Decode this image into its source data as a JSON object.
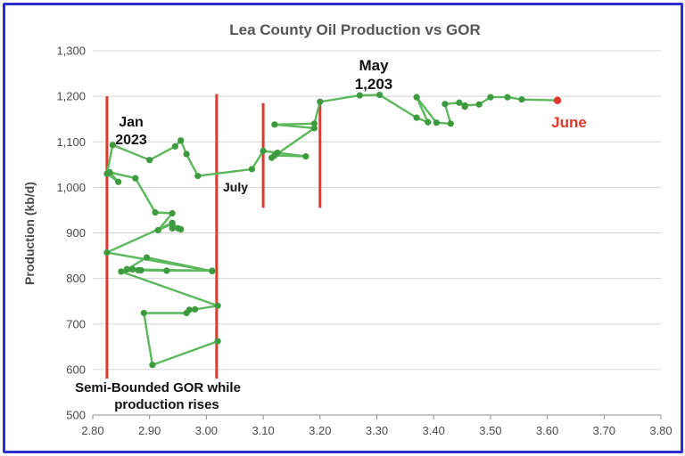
{
  "chart_data": {
    "type": "line",
    "title": "Lea County Oil Production vs GOR",
    "xlabel": "",
    "ylabel": "Production (kb/d)",
    "xlim": [
      2.8,
      3.8
    ],
    "ylim": [
      500,
      1300
    ],
    "x_ticks": [
      "2.80",
      "2.90",
      "3.00",
      "3.10",
      "3.20",
      "3.30",
      "3.40",
      "3.50",
      "3.60",
      "3.70",
      "3.80"
    ],
    "y_ticks": [
      "500",
      "600",
      "700",
      "800",
      "900",
      "1,000",
      "1,100",
      "1,200",
      "1,300"
    ],
    "grid": "horizontal",
    "series": [
      {
        "color": "#5cb85c",
        "marker_color": "#3e9a3e",
        "points": [
          [
            3.02,
            662
          ],
          [
            2.905,
            610
          ],
          [
            2.89,
            724
          ],
          [
            2.965,
            724
          ],
          [
            2.97,
            731
          ],
          [
            2.98,
            732
          ],
          [
            3.02,
            740
          ],
          [
            2.85,
            815
          ],
          [
            2.88,
            818
          ],
          [
            2.87,
            820
          ],
          [
            2.86,
            820
          ],
          [
            3.01,
            817
          ],
          [
            2.93,
            817
          ],
          [
            2.885,
            818
          ],
          [
            2.86,
            820
          ],
          [
            2.895,
            846
          ],
          [
            3.01,
            816
          ],
          [
            2.825,
            857
          ],
          [
            2.94,
            922
          ],
          [
            2.95,
            910
          ],
          [
            2.94,
            910
          ],
          [
            2.955,
            908
          ],
          [
            2.94,
            920
          ],
          [
            2.915,
            906
          ],
          [
            2.94,
            943
          ],
          [
            2.91,
            945
          ],
          [
            2.875,
            1020
          ],
          [
            2.83,
            1033
          ],
          [
            2.845,
            1012
          ],
          [
            2.825,
            1030
          ],
          [
            2.835,
            1093
          ],
          [
            2.9,
            1060
          ],
          [
            2.945,
            1090
          ],
          [
            2.955,
            1103
          ],
          [
            2.965,
            1073
          ],
          [
            2.985,
            1025
          ],
          [
            3.08,
            1040
          ],
          [
            3.1,
            1080
          ],
          [
            3.125,
            1076
          ],
          [
            3.175,
            1068
          ],
          [
            3.12,
            1070
          ],
          [
            3.115,
            1065
          ],
          [
            3.19,
            1130
          ],
          [
            3.12,
            1138
          ],
          [
            3.19,
            1140
          ],
          [
            3.2,
            1188
          ],
          [
            3.27,
            1202
          ],
          [
            3.305,
            1203
          ],
          [
            3.37,
            1153
          ],
          [
            3.39,
            1143
          ],
          [
            3.37,
            1198
          ],
          [
            3.405,
            1142
          ],
          [
            3.43,
            1140
          ],
          [
            3.42,
            1183
          ],
          [
            3.445,
            1186
          ],
          [
            3.455,
            1177
          ],
          [
            3.455,
            1180
          ],
          [
            3.48,
            1182
          ],
          [
            3.5,
            1198
          ],
          [
            3.53,
            1198
          ],
          [
            3.555,
            1193
          ],
          [
            3.618,
            1191
          ]
        ],
        "last_point_color": "#e0392b"
      }
    ],
    "reference_lines": {
      "color": "#e0392b",
      "segments": [
        [
          2.825,
          580,
          1200
        ],
        [
          3.018,
          580,
          1205
        ],
        [
          3.1,
          955,
          1185
        ],
        [
          3.2,
          955,
          1190
        ]
      ]
    },
    "annotations": {
      "jan_line1": "Jan",
      "jan_line2": "2023",
      "july": "July",
      "may_line1": "May",
      "may_line2": "1,203",
      "june": "June",
      "bottom_line1": "Semi-Bounded GOR while",
      "bottom_line2": "production rises"
    }
  }
}
